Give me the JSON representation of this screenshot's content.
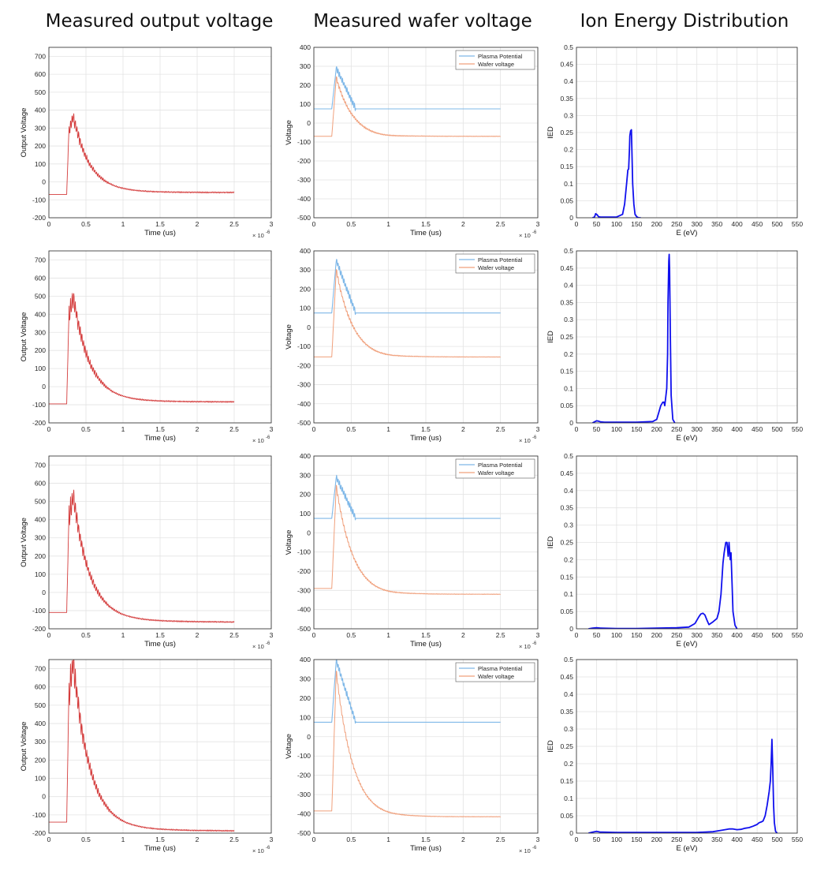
{
  "titles": [
    "Measured output voltage",
    "Measured wafer voltage",
    "Ion Energy Distribution"
  ],
  "colors": {
    "output": "#d43c3c",
    "plasma": "#7fb8e8",
    "wafer": "#f0a07c",
    "ied": "#1010ee",
    "grid": "#e3e3e3",
    "axis": "#262626"
  },
  "chart_data": [
    {
      "type": "line",
      "title": "Measured output voltage",
      "xlabel": "Time (us)",
      "ylabel": "Output Voltage",
      "x_exponent": "× 10^-6",
      "xlim": [
        0,
        3e-06
      ],
      "ylim": [
        -200,
        750
      ],
      "xticks": [
        "0",
        "0.5",
        "1",
        "1.5",
        "2",
        "2.5",
        "3"
      ],
      "yticks": [
        "-200",
        "-100",
        "0",
        "100",
        "200",
        "300",
        "400",
        "500",
        "600",
        "700"
      ],
      "grid": true,
      "series": [
        {
          "base": -70,
          "peak": 365,
          "end": -60
        }
      ]
    },
    {
      "type": "line",
      "title": "Measured wafer voltage",
      "xlabel": "Time (us)",
      "ylabel": "Voltage",
      "x_exponent": "× 10^-6",
      "xlim": [
        0,
        3e-06
      ],
      "ylim": [
        -500,
        400
      ],
      "xticks": [
        "0",
        "0.5",
        "1",
        "1.5",
        "2",
        "2.5",
        "3"
      ],
      "yticks": [
        "-500",
        "-400",
        "-300",
        "-200",
        "-100",
        "0",
        "100",
        "200",
        "300",
        "400"
      ],
      "grid": true,
      "legend": "top-right",
      "series": [
        {
          "name": "Plasma Potential",
          "base": 75,
          "peak": 290
        },
        {
          "name": "Wafer voltage",
          "base": -70,
          "peak": 240,
          "end": -70
        }
      ]
    },
    {
      "type": "line",
      "title": "Ion Energy Distribution",
      "xlabel": "E (eV)",
      "ylabel": "IED",
      "xlim": [
        0,
        550
      ],
      "ylim": [
        0,
        0.5
      ],
      "xticks": [
        "0",
        "50",
        "100",
        "150",
        "200",
        "250",
        "300",
        "350",
        "400",
        "450",
        "500",
        "550"
      ],
      "yticks": [
        "0",
        "0.05",
        "0.1",
        "0.15",
        "0.2",
        "0.25",
        "0.3",
        "0.35",
        "0.4",
        "0.45",
        "0.5"
      ],
      "grid": true,
      "series": [
        {
          "x": [
            40,
            45,
            48,
            52,
            55,
            60,
            100,
            115,
            120,
            125,
            128,
            130,
            132,
            133,
            135,
            137,
            138,
            140,
            143,
            146,
            150,
            155,
            160
          ],
          "y": [
            0,
            0.002,
            0.012,
            0.008,
            0.003,
            0.002,
            0.002,
            0.01,
            0.04,
            0.1,
            0.14,
            0.143,
            0.2,
            0.24,
            0.255,
            0.258,
            0.2,
            0.1,
            0.04,
            0.01,
            0.003,
            0,
            0
          ]
        }
      ]
    },
    {
      "type": "line",
      "title": "",
      "xlabel": "Time (us)",
      "ylabel": "Output Voltage",
      "x_exponent": "× 10^-6",
      "xlim": [
        0,
        3e-06
      ],
      "ylim": [
        -200,
        750
      ],
      "xticks": [
        "0",
        "0.5",
        "1",
        "1.5",
        "2",
        "2.5",
        "3"
      ],
      "yticks": [
        "-200",
        "-100",
        "0",
        "100",
        "200",
        "300",
        "400",
        "500",
        "600",
        "700"
      ],
      "grid": true,
      "series": [
        {
          "base": -95,
          "peak": 495,
          "end": -85
        }
      ]
    },
    {
      "type": "line",
      "title": "",
      "xlabel": "Time (us)",
      "ylabel": "Voltage",
      "x_exponent": "× 10^-6",
      "xlim": [
        0,
        3e-06
      ],
      "ylim": [
        -500,
        400
      ],
      "xticks": [
        "0",
        "0.5",
        "1",
        "1.5",
        "2",
        "2.5",
        "3"
      ],
      "yticks": [
        "-500",
        "-400",
        "-300",
        "-200",
        "-100",
        "0",
        "100",
        "200",
        "300",
        "400"
      ],
      "grid": true,
      "legend": "top-right",
      "series": [
        {
          "name": "Plasma Potential",
          "base": 75,
          "peak": 350
        },
        {
          "name": "Wafer voltage",
          "base": -155,
          "peak": 300,
          "end": -155
        }
      ]
    },
    {
      "type": "line",
      "title": "",
      "xlabel": "E (eV)",
      "ylabel": "IED",
      "xlim": [
        0,
        550
      ],
      "ylim": [
        0,
        0.5
      ],
      "xticks": [
        "0",
        "50",
        "100",
        "150",
        "200",
        "250",
        "300",
        "350",
        "400",
        "450",
        "500",
        "550"
      ],
      "grid": true,
      "series": [
        {
          "x": [
            40,
            45,
            50,
            55,
            60,
            70,
            100,
            150,
            190,
            200,
            205,
            210,
            215,
            218,
            220,
            222,
            225,
            227,
            228,
            230,
            231,
            232,
            234,
            236,
            240,
            245
          ],
          "y": [
            0,
            0.003,
            0.006,
            0.005,
            0.003,
            0.002,
            0.002,
            0.002,
            0.004,
            0.01,
            0.03,
            0.05,
            0.06,
            0.06,
            0.05,
            0.07,
            0.1,
            0.2,
            0.35,
            0.47,
            0.49,
            0.45,
            0.25,
            0.08,
            0.01,
            0
          ]
        }
      ]
    },
    {
      "type": "line",
      "title": "",
      "xlabel": "Time (us)",
      "ylabel": "Output Voltage",
      "x_exponent": "× 10^-6",
      "xlim": [
        0,
        3e-06
      ],
      "ylim": [
        -200,
        750
      ],
      "xticks": [
        "0",
        "0.5",
        "1",
        "1.5",
        "2",
        "2.5",
        "3"
      ],
      "yticks": [
        "-200",
        "-100",
        "0",
        "100",
        "200",
        "300",
        "400",
        "500",
        "600",
        "700"
      ],
      "grid": true,
      "series": [
        {
          "base": -110,
          "peak": 530,
          "end": -165
        }
      ]
    },
    {
      "type": "line",
      "title": "",
      "xlabel": "Time (us)",
      "ylabel": "Voltage",
      "x_exponent": "× 10^-6",
      "xlim": [
        0,
        3e-06
      ],
      "ylim": [
        -500,
        400
      ],
      "xticks": [
        "0",
        "0.5",
        "1",
        "1.5",
        "2",
        "2.5",
        "3"
      ],
      "yticks": [
        "-500",
        "-400",
        "-300",
        "-200",
        "-100",
        "0",
        "100",
        "200",
        "300",
        "400"
      ],
      "grid": true,
      "legend": "top-right",
      "series": [
        {
          "name": "Plasma Potential",
          "base": 75,
          "peak": 290
        },
        {
          "name": "Wafer voltage",
          "base": -290,
          "peak": 245,
          "end": -320
        }
      ]
    },
    {
      "type": "line",
      "title": "",
      "xlabel": "E (eV)",
      "ylabel": "IED",
      "xlim": [
        0,
        550
      ],
      "ylim": [
        0,
        0.5
      ],
      "xticks": [
        "0",
        "50",
        "100",
        "150",
        "200",
        "250",
        "300",
        "350",
        "400",
        "450",
        "500",
        "550"
      ],
      "grid": true,
      "series": [
        {
          "x": [
            30,
            40,
            50,
            60,
            100,
            150,
            200,
            250,
            280,
            295,
            305,
            310,
            315,
            320,
            325,
            330,
            340,
            350,
            355,
            360,
            365,
            368,
            372,
            375,
            378,
            380,
            383,
            385,
            388,
            390,
            395,
            400
          ],
          "y": [
            0,
            0.002,
            0.003,
            0.002,
            0.001,
            0.001,
            0.002,
            0.003,
            0.005,
            0.015,
            0.035,
            0.043,
            0.045,
            0.04,
            0.025,
            0.012,
            0.02,
            0.03,
            0.05,
            0.1,
            0.19,
            0.22,
            0.25,
            0.25,
            0.21,
            0.25,
            0.2,
            0.22,
            0.12,
            0.05,
            0.01,
            0
          ]
        }
      ]
    },
    {
      "type": "line",
      "title": "",
      "xlabel": "Time (us)",
      "ylabel": "Output Voltage",
      "x_exponent": "× 10^-6",
      "xlim": [
        0,
        3e-06
      ],
      "ylim": [
        -200,
        750
      ],
      "xticks": [
        "0",
        "0.5",
        "1",
        "1.5",
        "2",
        "2.5",
        "3"
      ],
      "yticks": [
        "-200",
        "-100",
        "0",
        "100",
        "200",
        "300",
        "400",
        "500",
        "600",
        "700"
      ],
      "grid": true,
      "series": [
        {
          "base": -140,
          "peak": 730,
          "end": -190
        }
      ]
    },
    {
      "type": "line",
      "title": "",
      "xlabel": "Time (us)",
      "ylabel": "Voltage",
      "x_exponent": "× 10^-6",
      "xlim": [
        0,
        3e-06
      ],
      "ylim": [
        -500,
        400
      ],
      "xticks": [
        "0",
        "0.5",
        "1",
        "1.5",
        "2",
        "2.5",
        "3"
      ],
      "yticks": [
        "-500",
        "-400",
        "-300",
        "-200",
        "-100",
        "0",
        "100",
        "200",
        "300",
        "400"
      ],
      "grid": true,
      "legend": "top-right",
      "series": [
        {
          "name": "Plasma Potential",
          "base": 75,
          "peak": 395
        },
        {
          "name": "Wafer voltage",
          "base": -385,
          "peak": 340,
          "end": -415
        }
      ]
    },
    {
      "type": "line",
      "title": "",
      "xlabel": "E (eV)",
      "ylabel": "IED",
      "xlim": [
        0,
        550
      ],
      "ylim": [
        0,
        0.5
      ],
      "xticks": [
        "0",
        "50",
        "100",
        "150",
        "200",
        "250",
        "300",
        "350",
        "400",
        "450",
        "500",
        "550"
      ],
      "yticks": [
        "0",
        "0.05",
        "0.1",
        "0.15",
        "0.2",
        "0.25",
        "0.3",
        "0.35",
        "0.4",
        "0.45",
        "0.5"
      ],
      "grid": true,
      "series": [
        {
          "x": [
            30,
            40,
            50,
            60,
            100,
            200,
            300,
            340,
            360,
            380,
            390,
            400,
            410,
            420,
            430,
            440,
            450,
            455,
            460,
            465,
            470,
            475,
            480,
            483,
            485,
            487,
            489,
            491,
            493,
            496,
            500
          ],
          "y": [
            0,
            0.003,
            0.005,
            0.003,
            0.002,
            0.002,
            0.002,
            0.004,
            0.008,
            0.012,
            0.012,
            0.01,
            0.011,
            0.014,
            0.016,
            0.02,
            0.025,
            0.03,
            0.032,
            0.035,
            0.05,
            0.08,
            0.12,
            0.15,
            0.2,
            0.27,
            0.19,
            0.08,
            0.03,
            0.005,
            0
          ]
        }
      ]
    }
  ]
}
